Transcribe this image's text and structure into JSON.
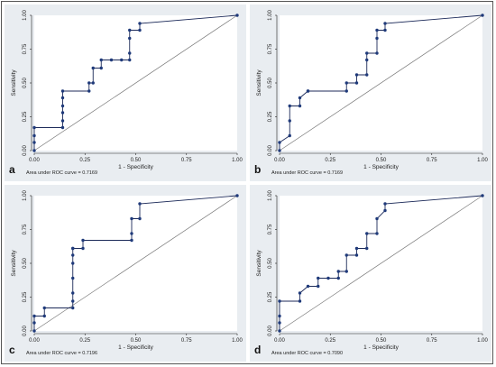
{
  "figure": {
    "axis_labels": {
      "x": "1 - Specificity",
      "y": "Sensitivity"
    },
    "tick_labels": [
      "0.00",
      "0.25",
      "0.50",
      "0.75",
      "1.00"
    ],
    "colors": {
      "panel_background": "#e9edf1",
      "roc_curve": "#1c2a59",
      "points": "#1f3a7a",
      "reference_line": "#777777"
    }
  },
  "chart_data": [
    {
      "type": "line",
      "panel_letter": "a",
      "auc_text": "Area under ROC curve = 0.7169",
      "xlabel": "1 - Specificity",
      "ylabel": "Sensitivity",
      "xlim": [
        0,
        1
      ],
      "ylim": [
        0,
        1
      ],
      "xticks": [
        "0.00",
        "0.25",
        "0.50",
        "0.75",
        "1.00"
      ],
      "yticks": [
        "0.00",
        "0.25",
        "0.50",
        "0.75",
        "1.00"
      ],
      "grid": false,
      "reference_line": true,
      "x": [
        0,
        0,
        0,
        0,
        0.14,
        0.14,
        0.14,
        0.14,
        0.14,
        0.14,
        0.27,
        0.27,
        0.29,
        0.29,
        0.33,
        0.33,
        0.38,
        0.43,
        0.47,
        0.47,
        0.47,
        0.47,
        0.52,
        0.52,
        1.0
      ],
      "y": [
        0,
        0.06,
        0.11,
        0.17,
        0.17,
        0.22,
        0.28,
        0.33,
        0.39,
        0.44,
        0.44,
        0.5,
        0.5,
        0.61,
        0.61,
        0.67,
        0.67,
        0.67,
        0.67,
        0.72,
        0.83,
        0.89,
        0.89,
        0.94,
        1.0
      ]
    },
    {
      "type": "line",
      "panel_letter": "b",
      "auc_text": "Area under ROC curve = 0.7169",
      "xlabel": "1 - Specificity",
      "ylabel": "Sensitivity",
      "xlim": [
        0,
        1
      ],
      "ylim": [
        0,
        1
      ],
      "xticks": [
        "0.00",
        "0.25",
        "0.50",
        "0.75",
        "1.00"
      ],
      "yticks": [
        "0.00",
        "0.25",
        "0.50",
        "0.75",
        "1.00"
      ],
      "grid": false,
      "reference_line": true,
      "x": [
        0,
        0,
        0.05,
        0.05,
        0.05,
        0.1,
        0.1,
        0.14,
        0.14,
        0.33,
        0.33,
        0.38,
        0.38,
        0.43,
        0.43,
        0.43,
        0.48,
        0.48,
        0.48,
        0.52,
        0.52,
        1.0
      ],
      "y": [
        0,
        0.06,
        0.11,
        0.22,
        0.33,
        0.33,
        0.39,
        0.44,
        0.44,
        0.44,
        0.5,
        0.5,
        0.56,
        0.56,
        0.67,
        0.72,
        0.72,
        0.83,
        0.89,
        0.89,
        0.94,
        1.0
      ]
    },
    {
      "type": "line",
      "panel_letter": "c",
      "auc_text": "Area under ROC curve = 0.7196",
      "xlabel": "1 - Specificity",
      "ylabel": "Sensitivity",
      "xlim": [
        0,
        1
      ],
      "ylim": [
        0,
        1
      ],
      "xticks": [
        "0.00",
        "0.25",
        "0.50",
        "0.75",
        "1.00"
      ],
      "yticks": [
        "0.00",
        "0.25",
        "0.50",
        "0.75",
        "1.00"
      ],
      "grid": false,
      "reference_line": true,
      "x": [
        0,
        0,
        0,
        0.05,
        0.05,
        0.19,
        0.19,
        0.19,
        0.19,
        0.19,
        0.19,
        0.19,
        0.19,
        0.24,
        0.24,
        0.48,
        0.48,
        0.48,
        0.52,
        0.52,
        1.0
      ],
      "y": [
        0,
        0.06,
        0.11,
        0.11,
        0.17,
        0.17,
        0.22,
        0.28,
        0.39,
        0.5,
        0.56,
        0.61,
        0.61,
        0.61,
        0.67,
        0.67,
        0.72,
        0.83,
        0.83,
        0.94,
        1.0
      ]
    },
    {
      "type": "line",
      "panel_letter": "d",
      "auc_text": "Area under ROC curve = 0.7090",
      "xlabel": "1 - Specificity",
      "ylabel": "Sensitivity",
      "xlim": [
        0,
        1
      ],
      "ylim": [
        0,
        1
      ],
      "xticks": [
        "0.00",
        "0.25",
        "0.50",
        "0.75",
        "1.00"
      ],
      "yticks": [
        "0.00",
        "0.25",
        "0.50",
        "0.75",
        "1.00"
      ],
      "grid": false,
      "reference_line": true,
      "x": [
        0,
        0,
        0,
        0,
        0.1,
        0.1,
        0.14,
        0.19,
        0.19,
        0.24,
        0.29,
        0.29,
        0.33,
        0.33,
        0.38,
        0.38,
        0.43,
        0.43,
        0.48,
        0.48,
        0.52,
        0.52,
        1.0
      ],
      "y": [
        0,
        0.06,
        0.11,
        0.22,
        0.22,
        0.28,
        0.33,
        0.33,
        0.39,
        0.39,
        0.39,
        0.44,
        0.44,
        0.56,
        0.56,
        0.61,
        0.61,
        0.72,
        0.72,
        0.83,
        0.89,
        0.94,
        1.0
      ]
    }
  ]
}
